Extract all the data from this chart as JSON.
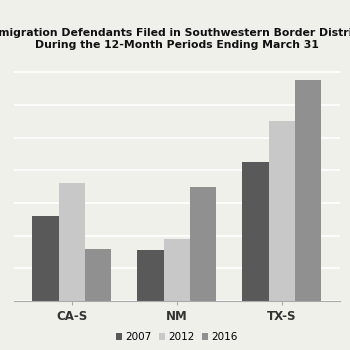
{
  "title_line1": "Immigration Defendants Filed in Southwestern Border Districts",
  "title_line2": "During the 12-Month Periods Ending March 31",
  "categories": [
    "CA-S",
    "NM",
    "TX-S"
  ],
  "series": {
    "2007": [
      5200,
      3100,
      8500
    ],
    "2012": [
      7200,
      3800,
      11000
    ],
    "2016": [
      3200,
      7000,
      13500
    ]
  },
  "legend_labels": [
    "2007",
    "2012",
    "2016"
  ],
  "colors": {
    "2007": "#595959",
    "2012": "#c8c8c8",
    "2016": "#909090"
  },
  "ylim": [
    0,
    15000
  ],
  "bar_width": 0.25,
  "title_fontsize": 7.8,
  "tick_fontsize": 8.5,
  "legend_fontsize": 7.5,
  "background_color": "#f0f0eb",
  "grid_color": "#ffffff",
  "spine_color": "#aaaaaa"
}
